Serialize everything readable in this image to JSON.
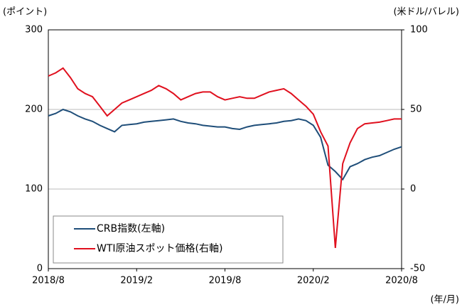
{
  "chart_data": {
    "type": "line",
    "y_label": "(ポイント)",
    "y2_label": "(米ドル/バレル)",
    "x_label": "(年/月)",
    "x": [
      "2018/8",
      null,
      null,
      null,
      null,
      null,
      null,
      null,
      null,
      null,
      null,
      null,
      "2019/2",
      null,
      null,
      null,
      null,
      null,
      null,
      null,
      null,
      null,
      null,
      null,
      "2019/8",
      null,
      null,
      null,
      null,
      null,
      null,
      null,
      null,
      null,
      null,
      null,
      "2020/2",
      null,
      null,
      null,
      null,
      null,
      null,
      null,
      null,
      null,
      null,
      null,
      "2020/8"
    ],
    "series": [
      {
        "name": "CRB指数(左軸)",
        "color": "#1f4e79",
        "values": [
          192,
          195,
          200,
          197,
          192,
          188,
          185,
          180,
          176,
          172,
          180,
          181,
          182,
          184,
          185,
          186,
          187,
          188,
          185,
          183,
          182,
          180,
          179,
          178,
          178,
          176,
          175,
          178,
          180,
          181,
          182,
          183,
          185,
          186,
          188,
          186,
          180,
          165,
          130,
          122,
          112,
          128,
          132,
          137,
          140,
          142,
          146,
          150,
          153
        ]
      },
      {
        "name": "WTI原油スポット価格(右軸)",
        "color": "#e0101e",
        "axis": "y2",
        "values": [
          71,
          73,
          76,
          70,
          63,
          60,
          58,
          52,
          46,
          50,
          54,
          56,
          58,
          60,
          62,
          65,
          63,
          60,
          56,
          58,
          60,
          61,
          61,
          58,
          56,
          57,
          58,
          57,
          57,
          59,
          61,
          62,
          63,
          60,
          56,
          52,
          47,
          36,
          27,
          -37,
          16,
          29,
          38,
          41,
          41.5,
          42,
          43,
          44,
          44
        ]
      }
    ],
    "ylim": [
      0,
      300
    ],
    "yticks": [
      0,
      100,
      200,
      300
    ],
    "y2lim": [
      -50,
      100
    ],
    "y2ticks": [
      -50,
      0,
      50,
      100
    ],
    "grid": true
  }
}
